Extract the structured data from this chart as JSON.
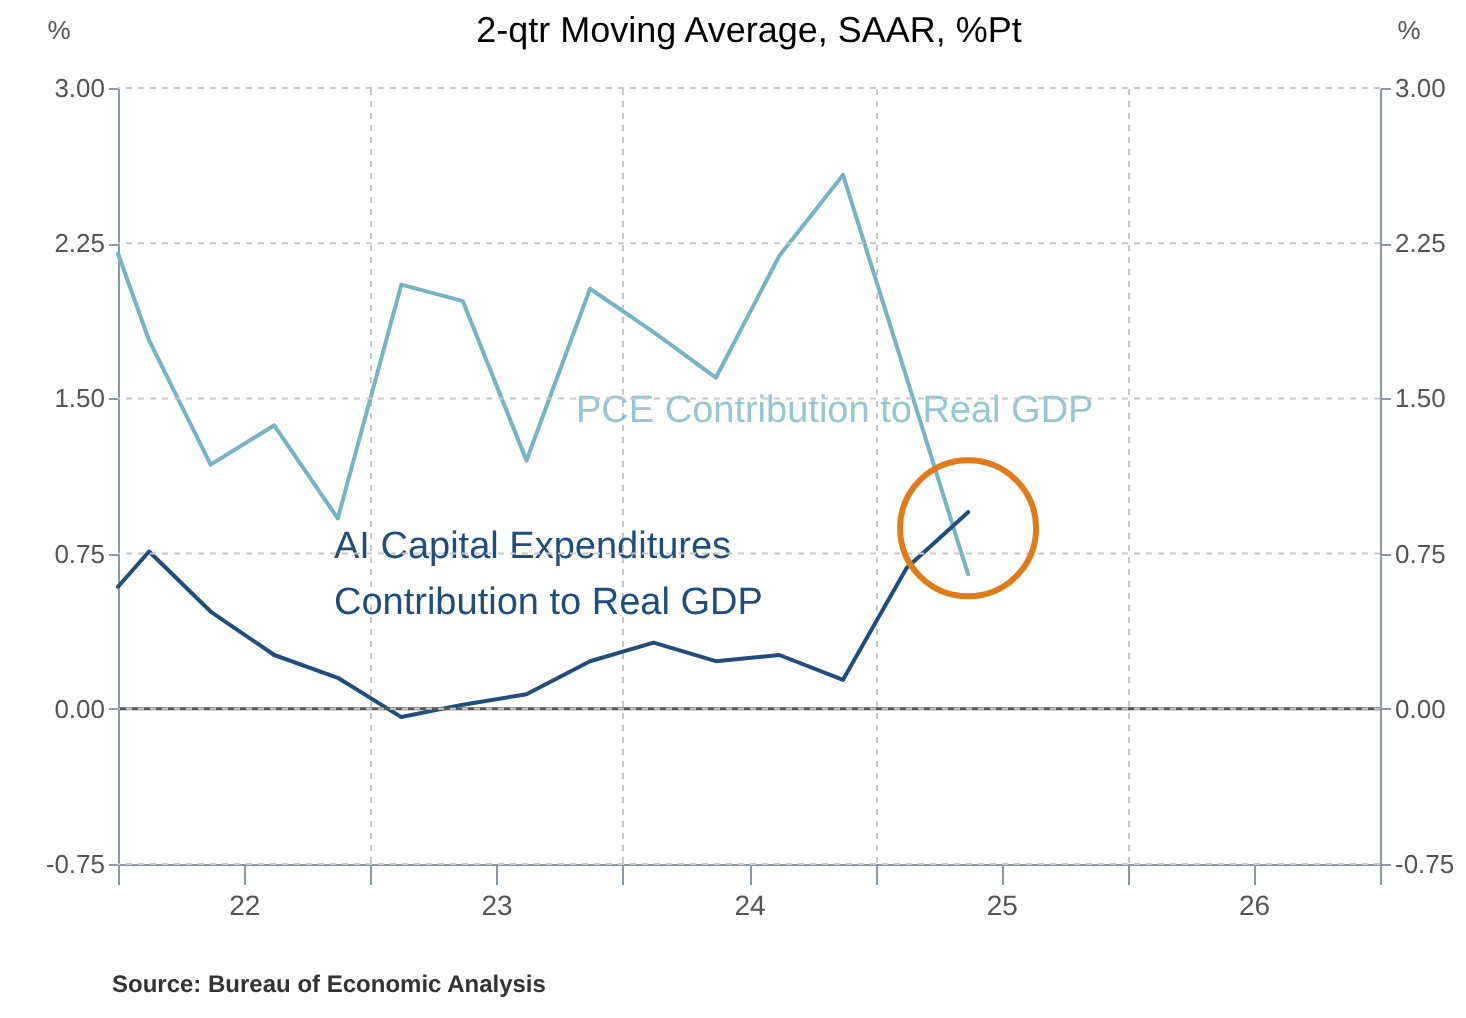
{
  "chart_data": {
    "type": "line",
    "title": "2-qtr Moving Average, SAAR, %Pt",
    "ylabel": "%",
    "y2label": "%",
    "x": [
      "2022-01-01",
      "2022-02-15",
      "2022-05-15",
      "2022-08-15",
      "2022-11-15",
      "2023-02-15",
      "2023-05-15",
      "2023-08-15",
      "2023-11-15",
      "2024-02-15",
      "2024-05-15",
      "2024-08-15",
      "2024-11-15",
      "2025-02-15",
      "2025-05-15"
    ],
    "series": [
      {
        "name": "PCE Contribution to Real GDP",
        "color": "#74b4c6",
        "values": [
          2.2,
          1.78,
          1.18,
          1.37,
          0.92,
          2.05,
          1.97,
          1.2,
          2.03,
          1.82,
          1.6,
          2.19,
          2.58,
          1.6,
          0.65
        ]
      },
      {
        "name": "AI Capital Expenditures Contribution to Real GDP",
        "color": "#1f4e7e",
        "values": [
          0.59,
          0.76,
          0.47,
          0.26,
          0.15,
          -0.04,
          0.02,
          0.07,
          0.23,
          0.32,
          0.23,
          0.26,
          0.14,
          0.68,
          0.95
        ]
      }
    ],
    "xlim": [
      "2022",
      "2027"
    ],
    "xticks": [
      {
        "value": "2022",
        "label": null
      },
      {
        "value": "2023",
        "label": null
      },
      {
        "value": "2024",
        "label": null
      },
      {
        "value": "2025",
        "label": null
      },
      {
        "value": "2026",
        "label": null
      },
      {
        "value": "2027",
        "label": null
      },
      {
        "value": "2022-07-02",
        "label": "22"
      },
      {
        "value": "2023-07-02",
        "label": "23"
      },
      {
        "value": "2024-07-02",
        "label": "24"
      },
      {
        "value": "2025-07-02",
        "label": "25"
      },
      {
        "value": "2026-07-02",
        "label": "26"
      }
    ],
    "ylim": [
      -0.75,
      3
    ],
    "yticks": [
      {
        "value": -0.75,
        "label": "-0.75"
      },
      {
        "value": 0,
        "label": "0.00"
      },
      {
        "value": 0.75,
        "label": "0.75"
      },
      {
        "value": 1.5,
        "label": "1.50"
      },
      {
        "value": 2.25,
        "label": "2.25"
      },
      {
        "value": 3,
        "label": "3.00"
      }
    ],
    "y2lim": [
      -0.75,
      3
    ],
    "y2ticks": [
      {
        "value": -0.75,
        "label": "-0.75"
      },
      {
        "value": 0,
        "label": "0.00"
      },
      {
        "value": 0.75,
        "label": "0.75"
      },
      {
        "value": 1.5,
        "label": "1.50"
      },
      {
        "value": 2.25,
        "label": "2.25"
      },
      {
        "value": 3,
        "label": "3.00"
      }
    ],
    "ref_lines": [
      {
        "axis": "y",
        "value": 0,
        "color": "#555555"
      }
    ],
    "grid": true,
    "annotations": [
      "Source:  Bureau of Economic Analysis"
    ]
  }
}
